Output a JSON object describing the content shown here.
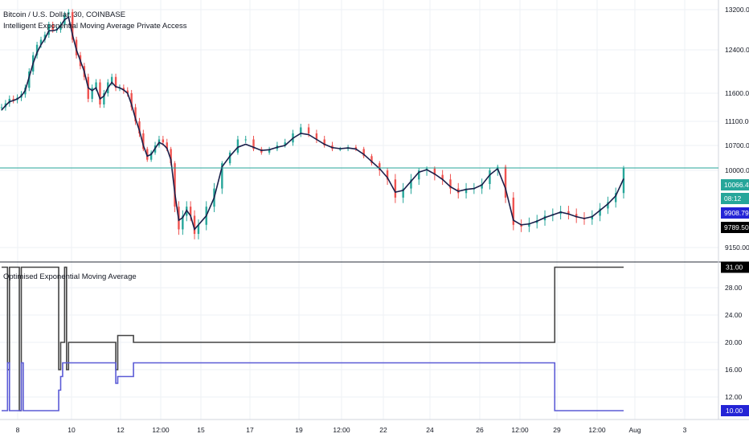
{
  "main_pane": {
    "title": "Bitcoin / U.S. Dollar, 30, COINBASE",
    "indicator_title": "Intelligent Exponential Moving Average Private Access"
  },
  "lower_pane": {
    "title": "Optimised Exponential Moving Average"
  },
  "colors": {
    "up_candle": "#26a69a",
    "down_candle": "#ef5350",
    "ema_line": "#1a1f4a",
    "price_line": "#26a69a",
    "lower_black": "#444444",
    "lower_blue": "#5b5bd6",
    "axis_text": "#131722",
    "grid": "#eef0f4"
  },
  "chart_data": [
    {
      "type": "line",
      "panel": "price",
      "y_axis_ticks": [
        "13200.00",
        "12400.00",
        "11600.00",
        "11100.00",
        "10700.00",
        "10000.00",
        "9150.00"
      ],
      "y_tick_values": [
        13200,
        12400,
        11600,
        11100,
        10700,
        10000,
        9150
      ],
      "y_axis_labels": [
        {
          "text": "10066.40",
          "value": 10066.4,
          "bg": "#26a69a",
          "fg": "#ffffff"
        },
        {
          "text": "08:12",
          "value": 9900,
          "bg": "#26a69a",
          "fg": "#ffffff"
        },
        {
          "text": "9908.79",
          "value": 9908.79,
          "bg": "#2424d6",
          "fg": "#ffffff"
        },
        {
          "text": "9789.50",
          "value": 9789.5,
          "bg": "#000000",
          "fg": "#ffffff"
        }
      ],
      "series": [
        {
          "role": "ohlc",
          "x": [
            0,
            2,
            4,
            6,
            8,
            10,
            12,
            14,
            16,
            18,
            20,
            22,
            24,
            26,
            28,
            30,
            32,
            34,
            36,
            38,
            40,
            42,
            44,
            46,
            48,
            50,
            52,
            54,
            56,
            58,
            60,
            62,
            64,
            66,
            68,
            70,
            72,
            74,
            76,
            78,
            80,
            82,
            84,
            86,
            88,
            90,
            92,
            94,
            96,
            98,
            100
          ],
          "close": [
            11350,
            11420,
            11500,
            11480,
            11520,
            11580,
            11700,
            12000,
            12300,
            12500,
            12600,
            12700,
            12900,
            12800,
            12800,
            12900,
            13100,
            13150,
            12600,
            12300,
            12100,
            11900,
            11500,
            11700,
            11800,
            11400,
            11600,
            11800,
            11900,
            11700,
            11700,
            11650,
            11600,
            11350,
            11100,
            10900,
            10600,
            10300,
            10500,
            10700,
            10800,
            10750,
            10600,
            10200,
            9600,
            9350,
            9500,
            9600,
            9500,
            9300,
            9400
          ]
        },
        {
          "role": "ema",
          "x": [
            0,
            2,
            4,
            6,
            8,
            10,
            12,
            14,
            16,
            18,
            20,
            22,
            24,
            26,
            28,
            30,
            32,
            34,
            36,
            38,
            40,
            42,
            44,
            46,
            48,
            50,
            52,
            54,
            56,
            58,
            60,
            62,
            64,
            66,
            68,
            70,
            72,
            74,
            76,
            78,
            80,
            82,
            84,
            86,
            88,
            90,
            92,
            94,
            96,
            98,
            100
          ],
          "values": [
            11300,
            11380,
            11450,
            11470,
            11500,
            11550,
            11650,
            11900,
            12150,
            12350,
            12500,
            12620,
            12780,
            12780,
            12800,
            12880,
            13000,
            13050,
            12700,
            12400,
            12200,
            12000,
            11700,
            11650,
            11700,
            11500,
            11550,
            11700,
            11800,
            11720,
            11700,
            11660,
            11600,
            11400,
            11150,
            10950,
            10700,
            10400,
            10450,
            10620,
            10750,
            10720,
            10620,
            10300,
            9750,
            9450,
            9480,
            9560,
            9500,
            9350,
            9400
          ]
        },
        {
          "role": "ohlc_cont",
          "x": [
            100,
            104,
            108,
            112,
            116,
            120,
            124,
            128,
            132,
            136,
            140,
            144,
            148,
            152,
            156,
            160,
            164,
            168,
            172,
            176,
            180,
            184,
            188,
            192,
            196,
            200,
            204,
            208,
            212,
            216,
            220,
            224,
            228,
            232,
            236,
            240,
            244,
            248,
            252,
            256,
            260
          ],
          "close": [
            9400,
            9600,
            9800,
            10200,
            10500,
            10800,
            10800,
            10600,
            10500,
            10600,
            10700,
            10750,
            10900,
            11000,
            10900,
            10800,
            10700,
            10600,
            10600,
            10650,
            10600,
            10400,
            10200,
            10000,
            9900,
            9700,
            9800,
            9900,
            10000,
            10050,
            9950,
            9900,
            9800,
            9750,
            9800,
            9800,
            9850,
            10000,
            10100,
            9700,
            9400
          ]
        },
        {
          "role": "ema_cont",
          "x": [
            100,
            104,
            108,
            112,
            116,
            120,
            124,
            128,
            132,
            136,
            140,
            144,
            148,
            152,
            156,
            160,
            164,
            168,
            172,
            176,
            180,
            184,
            188,
            192,
            196,
            200,
            204,
            208,
            212,
            216,
            220,
            224,
            228,
            232,
            236,
            240,
            244,
            248,
            252,
            256,
            260
          ],
          "values": [
            9400,
            9500,
            9700,
            10100,
            10400,
            10650,
            10720,
            10650,
            10560,
            10580,
            10650,
            10700,
            10820,
            10900,
            10880,
            10800,
            10720,
            10640,
            10610,
            10630,
            10600,
            10450,
            10250,
            10050,
            9920,
            9760,
            9780,
            9880,
            9980,
            10020,
            9960,
            9900,
            9820,
            9770,
            9790,
            9800,
            9840,
            9950,
            10050,
            9800,
            9450
          ]
        },
        {
          "role": "ohlc_end",
          "x": [
            260,
            264,
            268,
            272,
            276,
            280,
            284,
            288,
            292,
            296,
            300,
            304,
            308,
            312,
            316
          ],
          "close": [
            9400,
            9380,
            9420,
            9450,
            9500,
            9520,
            9550,
            9520,
            9480,
            9460,
            9500,
            9580,
            9650,
            9750,
            10066
          ]
        },
        {
          "role": "ema_end",
          "x": [
            260,
            264,
            268,
            272,
            276,
            280,
            284,
            288,
            292,
            296,
            300,
            304,
            308,
            312,
            316
          ],
          "values": [
            9450,
            9400,
            9410,
            9440,
            9480,
            9510,
            9540,
            9520,
            9490,
            9470,
            9490,
            9560,
            9630,
            9720,
            9908
          ]
        }
      ],
      "current_price": 10066.4
    },
    {
      "type": "line",
      "panel": "indicator",
      "y_axis_ticks": [
        "28.00",
        "24.00",
        "20.00",
        "16.00",
        "12.00"
      ],
      "y_tick_values": [
        28,
        24,
        20,
        16,
        12
      ],
      "y_axis_labels": [
        {
          "text": "31.00",
          "value": 31,
          "bg": "#000000",
          "fg": "#ffffff"
        },
        {
          "text": "10.00",
          "value": 10,
          "bg": "#2424d6",
          "fg": "#ffffff"
        }
      ],
      "series": [
        {
          "role": "black",
          "steps": [
            [
              0,
              31
            ],
            [
              3,
              16
            ],
            [
              4,
              31
            ],
            [
              9,
              10
            ],
            [
              10,
              31
            ],
            [
              28,
              31
            ],
            [
              29,
              16
            ],
            [
              30,
              20
            ],
            [
              31,
              20
            ],
            [
              32,
              31
            ],
            [
              33,
              16
            ],
            [
              34,
              20
            ],
            [
              57,
              20
            ],
            [
              58,
              16
            ],
            [
              59,
              21
            ],
            [
              66,
              21
            ],
            [
              67,
              20
            ],
            [
              280,
              20
            ],
            [
              281,
              31
            ],
            [
              316,
              31
            ]
          ]
        },
        {
          "role": "blue",
          "steps": [
            [
              0,
              10
            ],
            [
              3,
              17
            ],
            [
              4,
              10
            ],
            [
              9,
              10
            ],
            [
              10,
              17
            ],
            [
              11,
              10
            ],
            [
              28,
              10
            ],
            [
              29,
              13
            ],
            [
              30,
              15
            ],
            [
              31,
              17
            ],
            [
              57,
              17
            ],
            [
              58,
              14
            ],
            [
              59,
              15
            ],
            [
              66,
              15
            ],
            [
              67,
              17
            ],
            [
              280,
              17
            ],
            [
              281,
              10
            ],
            [
              316,
              10
            ]
          ]
        }
      ]
    }
  ],
  "x_axis_ticks": [
    "8",
    "10",
    "12",
    "12:00",
    "15",
    "17",
    "19",
    "12:00",
    "22",
    "24",
    "26",
    "12:00",
    "29",
    "12:00",
    "Aug",
    "3"
  ]
}
